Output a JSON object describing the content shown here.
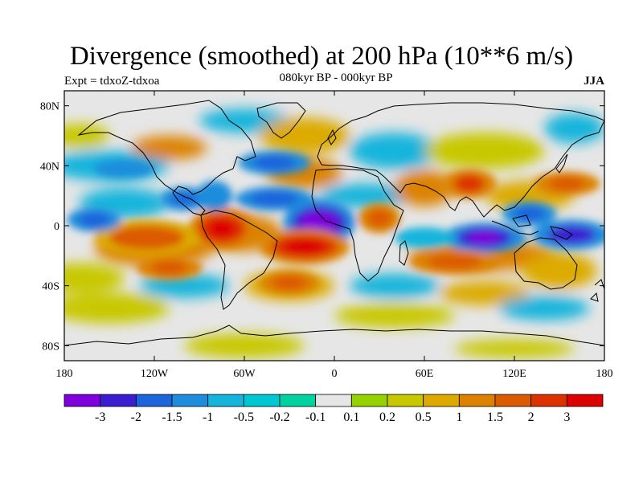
{
  "title": "Divergence (smoothed) at 200 hPa (10**6 m/s)",
  "experiment": "Expt = tdxoZ-tdxoa",
  "subtitle": "080kyr BP - 000kyr BP",
  "season": "JJA",
  "chart_data": {
    "type": "contour-map",
    "x_ticks": [
      {
        "value": -180,
        "label": "180"
      },
      {
        "value": -120,
        "label": "120W"
      },
      {
        "value": -60,
        "label": "60W"
      },
      {
        "value": 0,
        "label": "0"
      },
      {
        "value": 60,
        "label": "60E"
      },
      {
        "value": 120,
        "label": "120E"
      },
      {
        "value": 180,
        "label": "180"
      }
    ],
    "y_ticks": [
      {
        "value": 80,
        "label": "80N"
      },
      {
        "value": 40,
        "label": "40N"
      },
      {
        "value": 0,
        "label": "0"
      },
      {
        "value": -40,
        "label": "40S"
      },
      {
        "value": -80,
        "label": "80S"
      }
    ],
    "xlim": [
      -180,
      180
    ],
    "ylim": [
      -90,
      90
    ],
    "colorbar": {
      "levels": [
        "-3",
        "-2",
        "-1.5",
        "-1",
        "-0.5",
        "-0.2",
        "-0.1",
        "0.1",
        "0.2",
        "0.5",
        "1",
        "1.5",
        "2",
        "3"
      ],
      "colors": [
        "#7f00dc",
        "#3c1ed2",
        "#1e64dc",
        "#1e8cdc",
        "#14b4dc",
        "#00c8d2",
        "#00d2a0",
        "#e6e6e6",
        "#96d200",
        "#c8c800",
        "#dcaa00",
        "#dc8200",
        "#dc5a00",
        "#dc3200",
        "#dc0000"
      ]
    },
    "features": [
      {
        "region": "tropical Atlantic / West Africa",
        "lon": -10,
        "lat": 2,
        "level": "-3"
      },
      {
        "region": "South Atlantic",
        "lon": -20,
        "lat": -12,
        "level": "3"
      },
      {
        "region": "eastern tropical Pacific",
        "lon": -75,
        "lat": -2,
        "level": "3"
      },
      {
        "region": "eastern Indian Ocean",
        "lon": 100,
        "lat": -8,
        "level": "-3"
      },
      {
        "region": "western Pacific",
        "lon": 155,
        "lat": -5,
        "level": "-2"
      },
      {
        "region": "central Pacific",
        "lon": -160,
        "lat": 5,
        "level": "-1.5"
      },
      {
        "region": "Tibet",
        "lon": 90,
        "lat": 28,
        "level": "2"
      },
      {
        "region": "central Pacific",
        "lon": -140,
        "lat": -10,
        "level": "1.5"
      },
      {
        "region": "Atlantic",
        "lon": -40,
        "lat": 42,
        "level": "-1.5"
      },
      {
        "region": "Atlantic",
        "lon": -40,
        "lat": 18,
        "level": "-1"
      },
      {
        "region": "South Indian Ocean",
        "lon": 80,
        "lat": -22,
        "level": "1.5"
      },
      {
        "region": "Northwest Pacific",
        "lon": 155,
        "lat": 30,
        "level": "1"
      }
    ]
  }
}
